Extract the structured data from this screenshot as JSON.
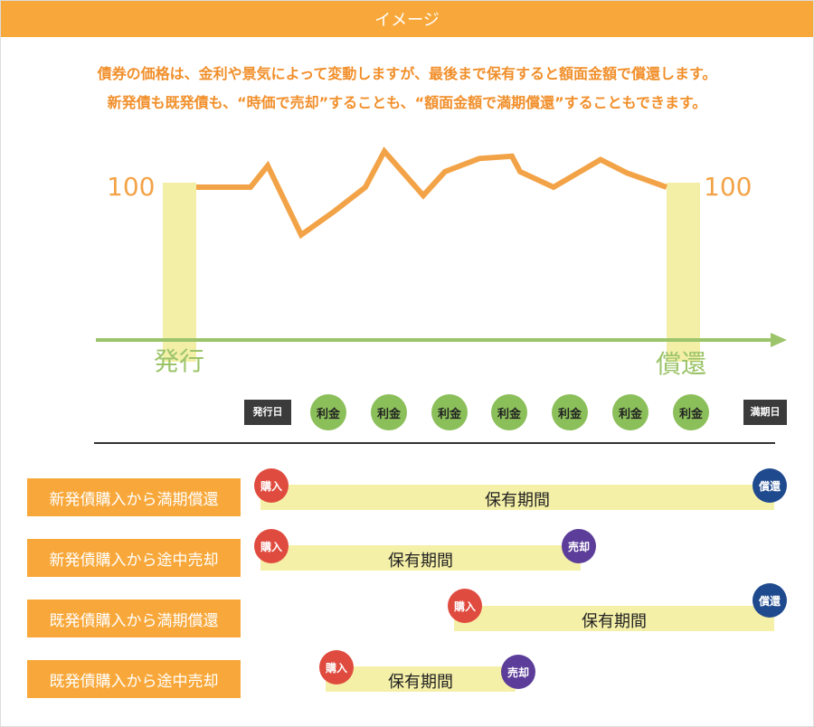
{
  "header": {
    "title": "イメージ"
  },
  "intro": {
    "line1": "債券の価格は、金利や景気によって変動しますが、最後まで保有すると額面金額で償還します。",
    "line2": "新発債も既発債も、“時価で売却”することも、“額面金額で満期償還”することもできます。"
  },
  "price_chart": {
    "start_value_label": "100",
    "end_value_label": "100",
    "issue_label": "発行",
    "redemption_label": "償還",
    "line_color": "#f3a347",
    "axis_color": "#9cc46a",
    "pillar_color": "#f3efa6",
    "price_path": [
      100,
      100,
      118,
      60,
      80,
      100,
      130,
      93,
      113,
      124,
      126,
      113,
      100,
      123,
      112,
      100
    ]
  },
  "timeline": {
    "issue_date": "発行日",
    "maturity_date": "満期日",
    "coupons": [
      "利金",
      "利金",
      "利金",
      "利金",
      "利金",
      "利金",
      "利金"
    ]
  },
  "scenarios": [
    {
      "label": "新発債購入から満期償還",
      "buy": "購入",
      "hold": "保有期間",
      "exit": "償還"
    },
    {
      "label": "新発債購入から途中売却",
      "buy": "購入",
      "hold": "保有期間",
      "exit": "売却"
    },
    {
      "label": "既発債購入から満期償還",
      "buy": "購入",
      "hold": "保有期間",
      "exit": "償還"
    },
    {
      "label": "既発債購入から途中売却",
      "buy": "購入",
      "hold": "保有期間",
      "exit": "売却"
    }
  ]
}
